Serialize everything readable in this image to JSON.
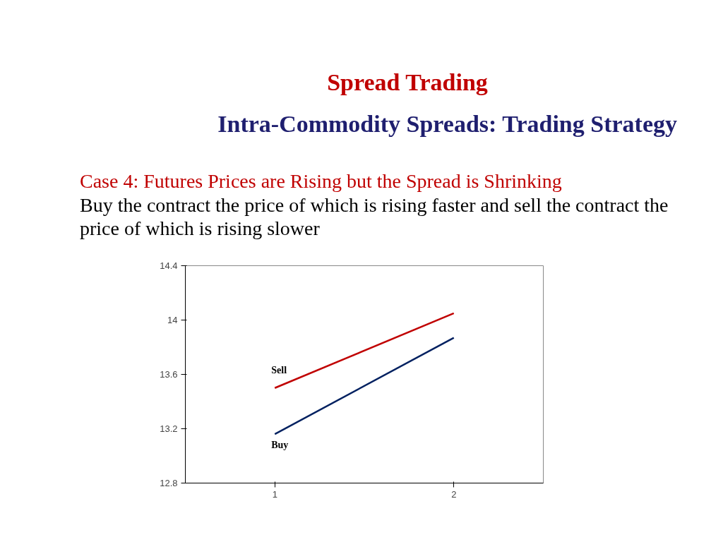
{
  "chart_data": {
    "type": "line",
    "title": "Spread Trading",
    "subtitle": "Intra-Commodity Spreads: Trading Strategy",
    "annotations": [
      "Case 4: Futures Prices are Rising but the Spread is Shrinking",
      "Buy the contract the price of which is rising faster and sell the contract the price of which is rising slower"
    ],
    "categories": [
      "1",
      "2"
    ],
    "series": [
      {
        "name": "Sell",
        "color": "#c00000",
        "values": [
          13.5,
          14.05
        ]
      },
      {
        "name": "Buy",
        "color": "#002060",
        "values": [
          13.16,
          13.87
        ]
      }
    ],
    "ylim": [
      12.8,
      14.4
    ],
    "yticks": [
      12.8,
      13.2,
      13.6,
      14,
      14.4
    ],
    "grid": false,
    "legend": false,
    "marker": "none",
    "line_style": "solid"
  }
}
